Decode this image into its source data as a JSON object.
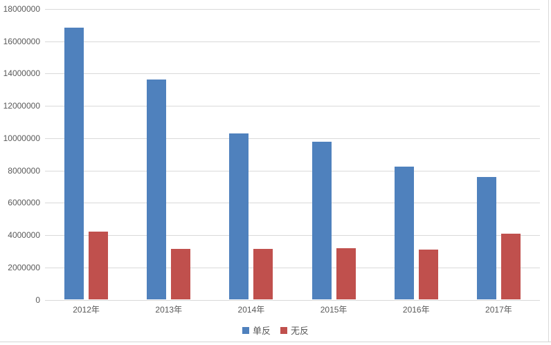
{
  "chart_data": {
    "type": "bar",
    "title": "",
    "categories": [
      "2012年",
      "2013年",
      "2014年",
      "2015年",
      "2016年",
      "2017年"
    ],
    "series": [
      {
        "name": "单反",
        "color": "#4F81BD",
        "values": [
          16850000,
          13650000,
          10300000,
          9800000,
          8250000,
          7600000
        ]
      },
      {
        "name": "无反",
        "color": "#C0504D",
        "values": [
          4200000,
          3150000,
          3150000,
          3200000,
          3100000,
          4100000
        ]
      }
    ],
    "ylim": [
      0,
      18000000
    ],
    "ytick_step": 2000000,
    "ytick_labels": [
      "0",
      "2000000",
      "4000000",
      "6000000",
      "8000000",
      "10000000",
      "12000000",
      "14000000",
      "16000000",
      "18000000"
    ],
    "grid": true,
    "legend_position": "bottom",
    "axis_text_color": "#595959",
    "gridline_color": "#d9d9d9",
    "background_color": "#ffffff"
  }
}
